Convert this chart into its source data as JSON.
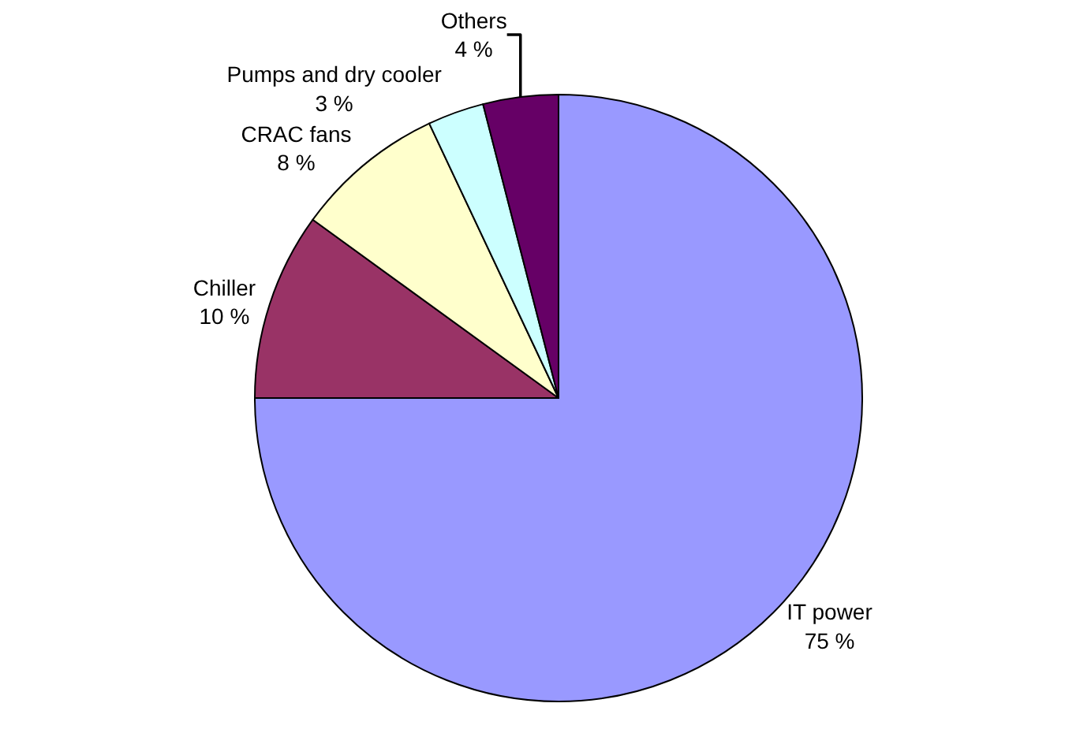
{
  "chart_data": {
    "type": "pie",
    "categories": [
      "IT power",
      "Chiller",
      "CRAC fans",
      "Pumps and dry cooler",
      "Others"
    ],
    "values": [
      75,
      10,
      8,
      3,
      4
    ],
    "value_labels": [
      "75 %",
      "10 %",
      "8 %",
      "3 %",
      "4 %"
    ],
    "colors": [
      "#9999ff",
      "#993366",
      "#ffffcc",
      "#ccffff",
      "#660066"
    ],
    "legend": false
  }
}
